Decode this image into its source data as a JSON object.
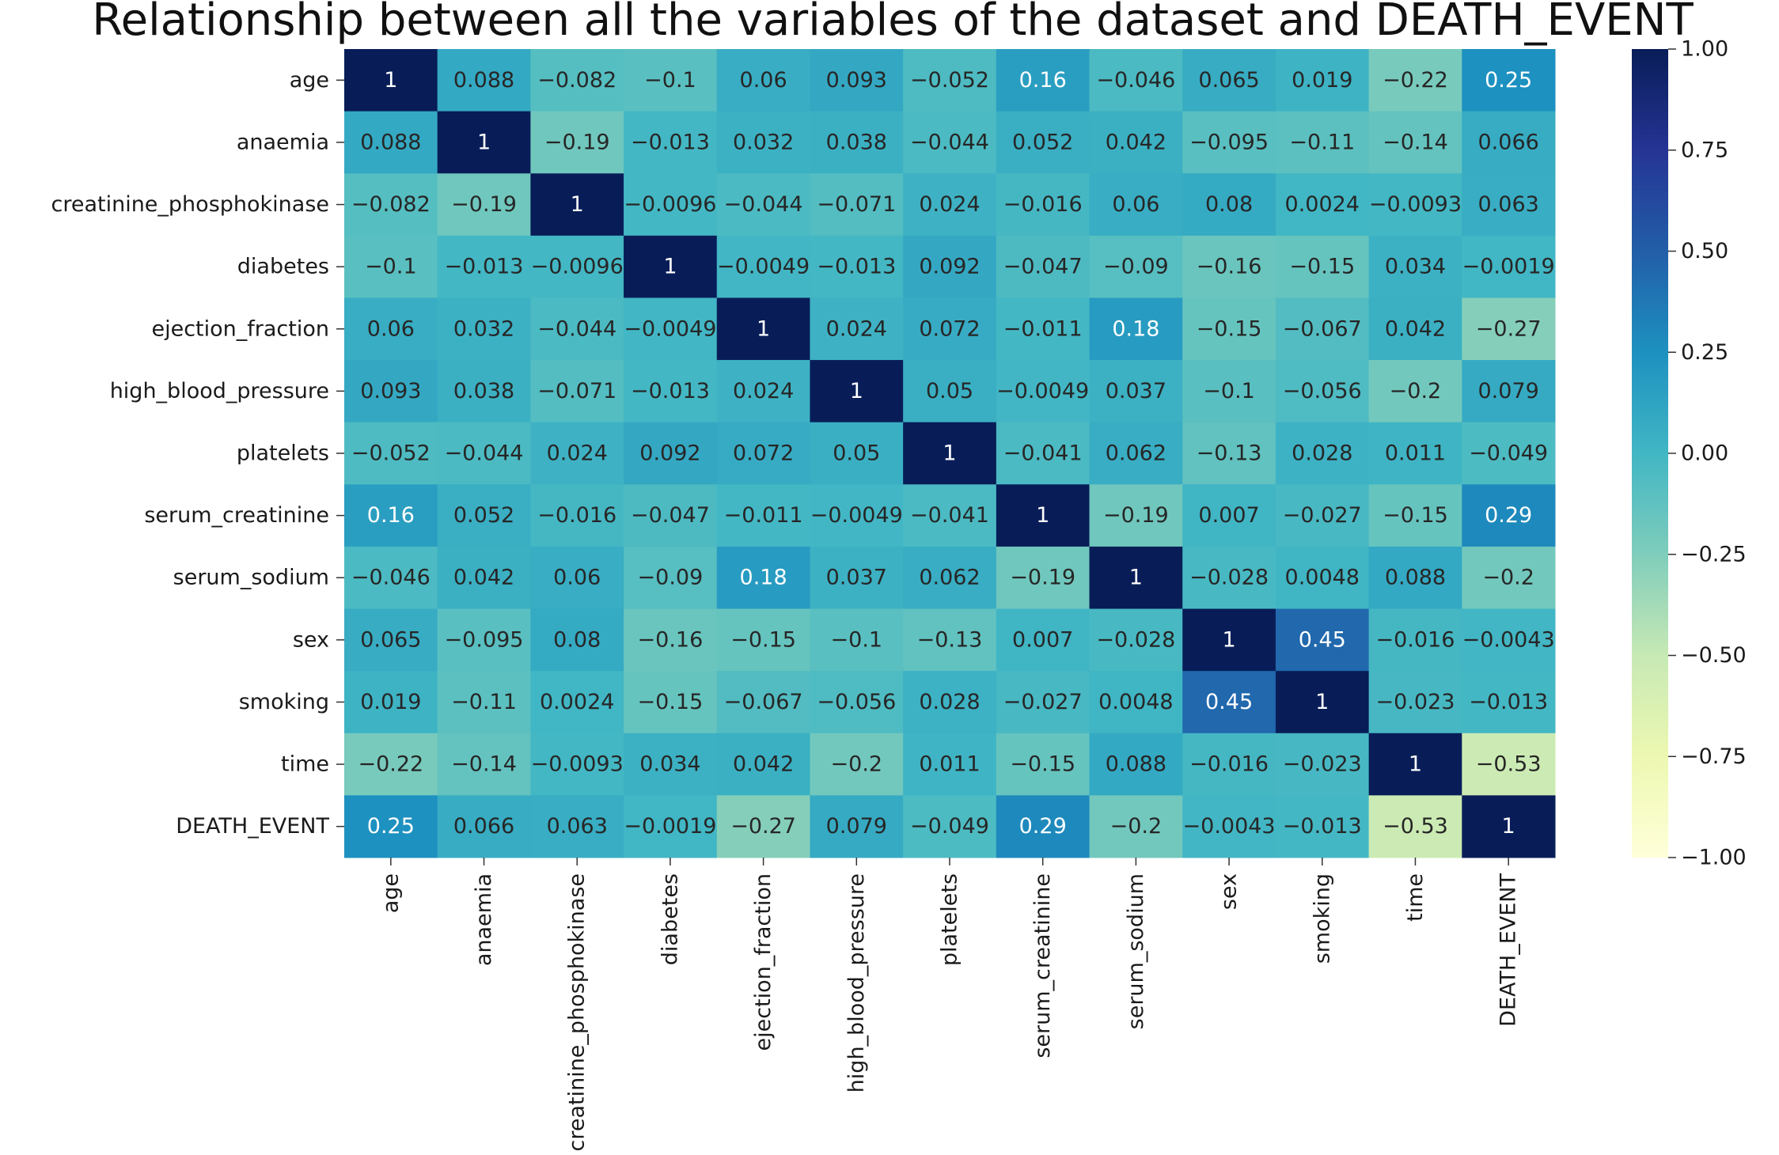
{
  "chart_data": {
    "type": "heatmap",
    "title": "Relationship between all the variables of the dataset and DEATH_EVENT",
    "rows": [
      "age",
      "anaemia",
      "creatinine_phosphokinase",
      "diabetes",
      "ejection_fraction",
      "high_blood_pressure",
      "platelets",
      "serum_creatinine",
      "serum_sodium",
      "sex",
      "smoking",
      "time",
      "DEATH_EVENT"
    ],
    "columns": [
      "age",
      "anaemia",
      "creatinine_phosphokinase",
      "diabetes",
      "ejection_fraction",
      "high_blood_pressure",
      "platelets",
      "serum_creatinine",
      "serum_sodium",
      "sex",
      "smoking",
      "time",
      "DEATH_EVENT"
    ],
    "values": [
      [
        1,
        0.088,
        -0.082,
        -0.1,
        0.06,
        0.093,
        -0.052,
        0.16,
        -0.046,
        0.065,
        0.019,
        -0.22,
        0.25
      ],
      [
        0.088,
        1,
        -0.19,
        -0.013,
        0.032,
        0.038,
        -0.044,
        0.052,
        0.042,
        -0.095,
        -0.11,
        -0.14,
        0.066
      ],
      [
        -0.082,
        -0.19,
        1,
        -0.0096,
        -0.044,
        -0.071,
        0.024,
        -0.016,
        0.06,
        0.08,
        0.0024,
        -0.0093,
        0.063
      ],
      [
        -0.1,
        -0.013,
        -0.0096,
        1,
        -0.0049,
        -0.013,
        0.092,
        -0.047,
        -0.09,
        -0.16,
        -0.15,
        0.034,
        -0.0019
      ],
      [
        0.06,
        0.032,
        -0.044,
        -0.0049,
        1,
        0.024,
        0.072,
        -0.011,
        0.18,
        -0.15,
        -0.067,
        0.042,
        -0.27
      ],
      [
        0.093,
        0.038,
        -0.071,
        -0.013,
        0.024,
        1,
        0.05,
        -0.0049,
        0.037,
        -0.1,
        -0.056,
        -0.2,
        0.079
      ],
      [
        -0.052,
        -0.044,
        0.024,
        0.092,
        0.072,
        0.05,
        1,
        -0.041,
        0.062,
        -0.13,
        0.028,
        0.011,
        -0.049
      ],
      [
        0.16,
        0.052,
        -0.016,
        -0.047,
        -0.011,
        -0.0049,
        -0.041,
        1,
        -0.19,
        0.007,
        -0.027,
        -0.15,
        0.29
      ],
      [
        -0.046,
        0.042,
        0.06,
        -0.09,
        0.18,
        0.037,
        0.062,
        -0.19,
        1,
        -0.028,
        0.0048,
        0.088,
        -0.2
      ],
      [
        0.065,
        -0.095,
        0.08,
        -0.16,
        -0.15,
        -0.1,
        -0.13,
        0.007,
        -0.028,
        1,
        0.45,
        -0.016,
        -0.0043
      ],
      [
        0.019,
        -0.11,
        0.0024,
        -0.15,
        -0.067,
        -0.056,
        0.028,
        -0.027,
        0.0048,
        0.45,
        1,
        -0.023,
        -0.013
      ],
      [
        -0.22,
        -0.14,
        -0.0093,
        0.034,
        0.042,
        -0.2,
        0.011,
        -0.15,
        0.088,
        -0.016,
        -0.023,
        1,
        -0.53
      ],
      [
        0.25,
        0.066,
        0.063,
        -0.0019,
        -0.27,
        0.079,
        -0.049,
        0.29,
        -0.2,
        -0.0043,
        -0.013,
        -0.53,
        1
      ]
    ],
    "colorbar": {
      "range": [
        -1.0,
        1.0
      ],
      "ticks": [
        "1.00",
        "0.75",
        "0.50",
        "0.25",
        "0.00",
        "−0.25",
        "−0.50",
        "−0.75",
        "−1.00"
      ],
      "tick_values": [
        1.0,
        0.75,
        0.5,
        0.25,
        0.0,
        -0.25,
        -0.5,
        -0.75,
        -1.0
      ]
    },
    "colormap": "YlGnBu",
    "colormap_stops": [
      "#ffffd9",
      "#edf8b1",
      "#c7e9b4",
      "#7fcdbb",
      "#41b6c4",
      "#1d91c0",
      "#225ea8",
      "#253494",
      "#081d58"
    ]
  }
}
